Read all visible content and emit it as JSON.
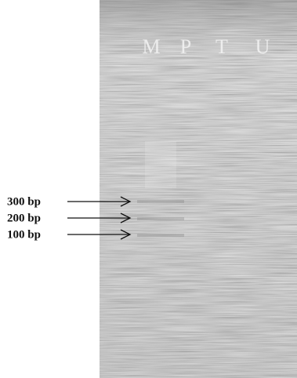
{
  "gel": {
    "lanes": [
      "M",
      "P",
      "T",
      "U"
    ],
    "markers": [
      "300 bp",
      "200 bp",
      "100 bp"
    ]
  }
}
